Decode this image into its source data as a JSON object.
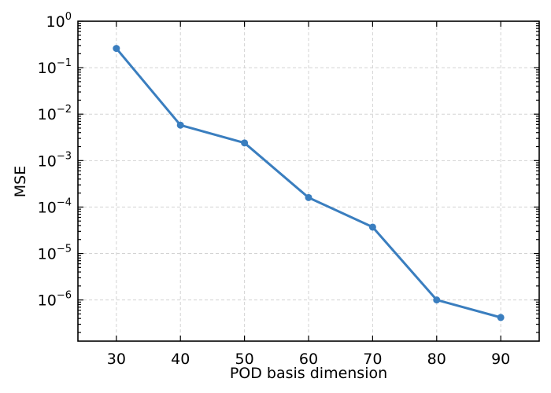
{
  "chart_data": {
    "type": "line",
    "title": "",
    "xlabel": "POD basis dimension",
    "ylabel": "MSE",
    "xscale": "linear",
    "yscale": "log",
    "xlim": [
      24,
      96
    ],
    "ylim": [
      1.3e-07,
      1
    ],
    "xticks": [
      30,
      40,
      50,
      60,
      70,
      80,
      90
    ],
    "ytick_exponents": [
      0,
      -1,
      -2,
      -3,
      -4,
      -5,
      -6
    ],
    "ytick_base": "10",
    "grid": true,
    "series": [
      {
        "x": [
          30,
          40,
          50,
          60,
          70,
          80,
          90
        ],
        "y": [
          0.26,
          0.0058,
          0.0024,
          0.00016,
          3.7e-05,
          1e-06,
          4.2e-07
        ],
        "color": "#3a7ebf",
        "marker": "circle"
      }
    ]
  }
}
